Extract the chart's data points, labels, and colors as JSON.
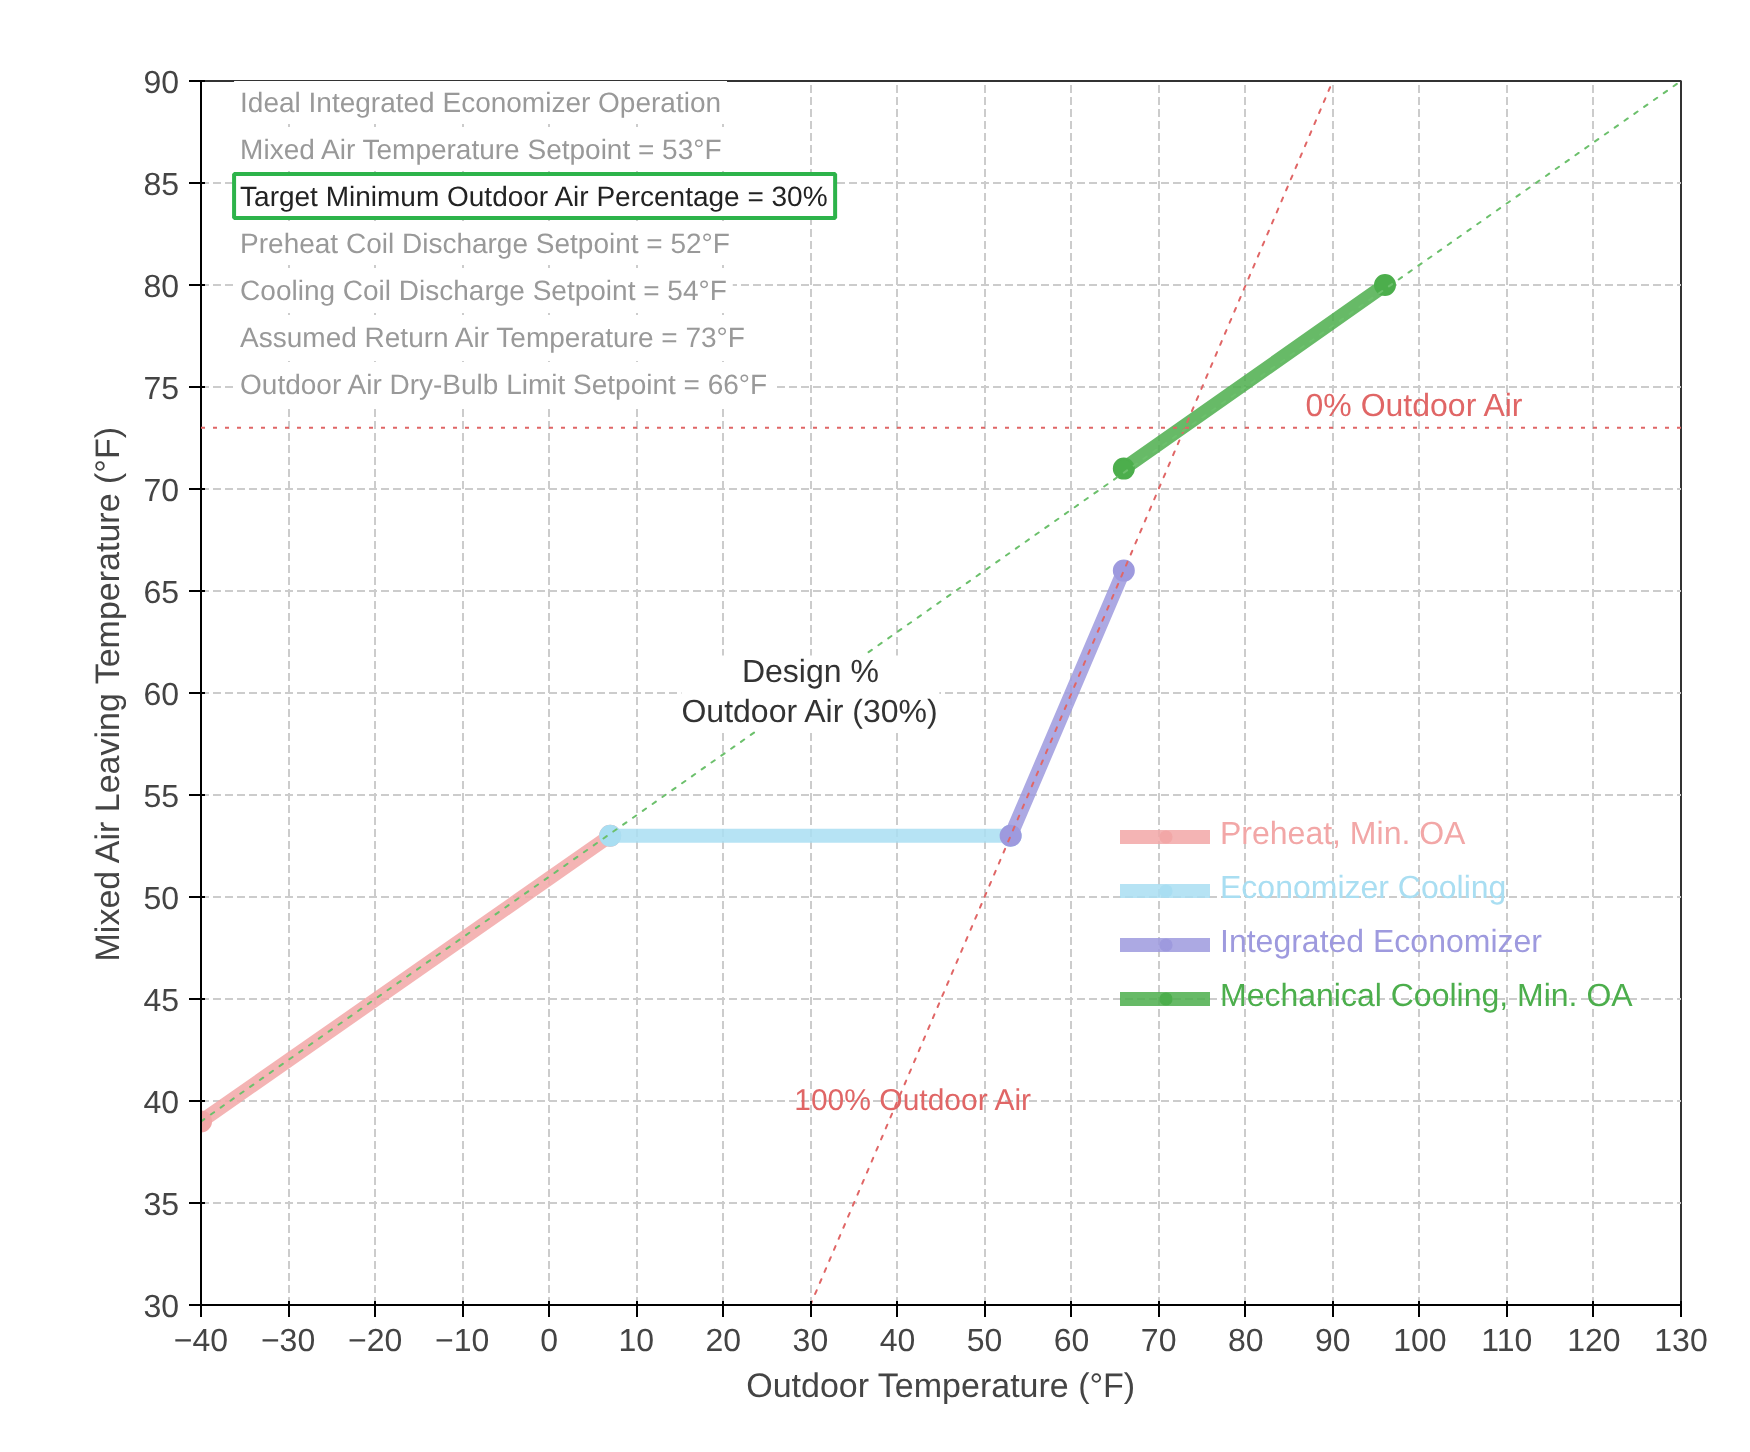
{
  "chart_data": {
    "type": "line",
    "xlabel": "Outdoor Temperature (°F)",
    "ylabel": "Mixed Air Leaving Temperature (°F)",
    "xlim": [
      -40,
      130
    ],
    "ylim": [
      30,
      90
    ],
    "xticks": [
      -40,
      -30,
      -20,
      -10,
      0,
      10,
      20,
      30,
      40,
      50,
      60,
      70,
      80,
      90,
      100,
      110,
      120,
      130
    ],
    "yticks": [
      30,
      35,
      40,
      45,
      50,
      55,
      60,
      65,
      70,
      75,
      80,
      85,
      90
    ],
    "grid": true,
    "legend": "right",
    "marker": "circle",
    "series": [
      {
        "name": "Preheat, Min. OA",
        "color": "#f2a7a7",
        "x": [
          -40,
          7
        ],
        "values": [
          39,
          53
        ]
      },
      {
        "name": "Economizer Cooling",
        "color": "#a9def2",
        "x": [
          7,
          53
        ],
        "values": [
          53,
          53
        ]
      },
      {
        "name": "Integrated Economizer",
        "color": "#9e9ade",
        "x": [
          53,
          66
        ],
        "values": [
          53,
          66
        ]
      },
      {
        "name": "Mechanical Cooling, Min. OA",
        "color": "#4cae4c",
        "x": [
          66,
          96
        ],
        "values": [
          71,
          80
        ]
      },
      {
        "type": "line",
        "name": "100% Outdoor Air",
        "color": "#e06666",
        "marker": "none",
        "line_style": "dotted",
        "x": [
          30,
          90
        ],
        "values": [
          30,
          90
        ]
      },
      {
        "type": "line",
        "color": "#6cc06c",
        "marker": "none",
        "line_style": "dotted",
        "x": [
          -40,
          130
        ],
        "values": [
          39,
          90
        ]
      }
    ],
    "ref_lines": [
      {
        "axis": "y",
        "value": 73,
        "label": "0% Outdoor Air",
        "color": "#e06666",
        "line_style": "dotted"
      }
    ],
    "annotations": [
      "Ideal Integrated Economizer Operation",
      "Mixed Air Temperature Setpoint = 53°F",
      "Target Minimum Outdoor Air Percentage = 30%",
      "Preheat Coil Discharge Setpoint = 52°F",
      "Cooling Coil Discharge Setpoint = 54°F",
      "Assumed Return Air Temperature = 73°F",
      "Outdoor Air Dry-Bulb Limit Setpoint = 66°F",
      {
        "text": "Design %\nOutdoor Air (30%)",
        "x": 30,
        "y": 60
      }
    ]
  }
}
